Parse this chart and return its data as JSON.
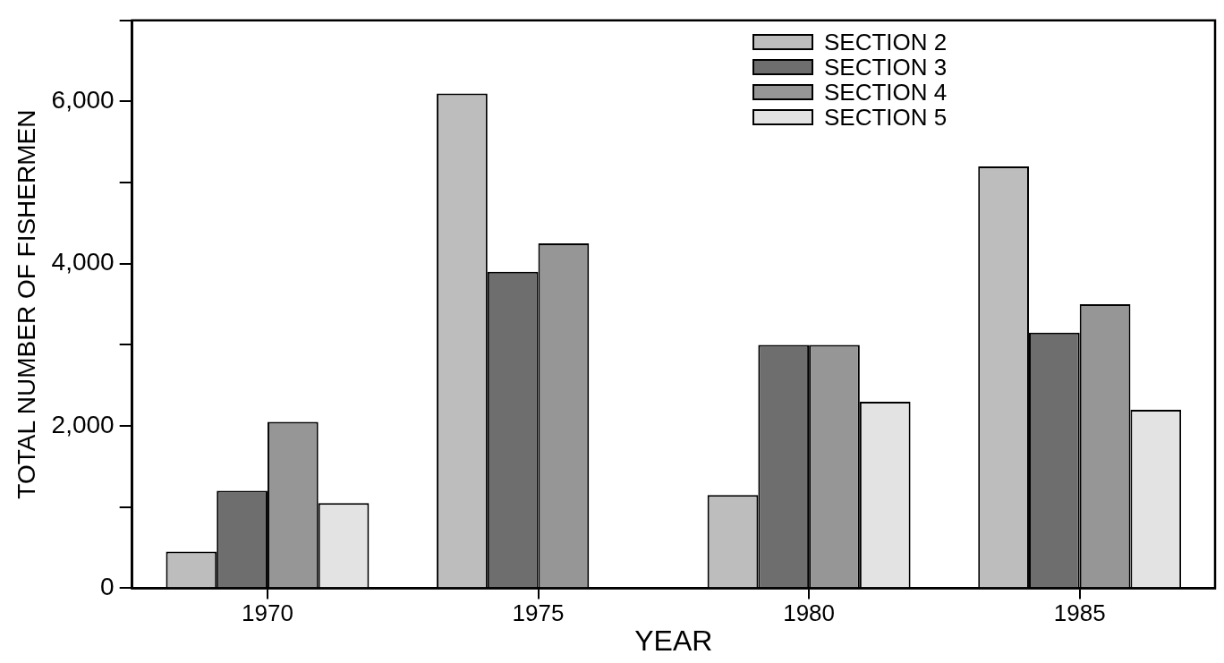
{
  "chart_data": {
    "type": "bar",
    "xlabel": "YEAR",
    "ylabel": "TOTAL NUMBER OF FISHERMEN",
    "categories": [
      "1970",
      "1975",
      "1980",
      "1985"
    ],
    "series": [
      {
        "name": "SECTION 2",
        "color": "#bdbdbd",
        "values": [
          450,
          6100,
          1150,
          5200
        ]
      },
      {
        "name": "SECTION 3",
        "color": "#6e6e6e",
        "values": [
          1200,
          3900,
          3000,
          3150
        ]
      },
      {
        "name": "SECTION 4",
        "color": "#969696",
        "values": [
          2050,
          4250,
          3000,
          3500
        ]
      },
      {
        "name": "SECTION 5",
        "color": "#e3e3e3",
        "values": [
          1050,
          null,
          2300,
          2200
        ]
      }
    ],
    "ylim": [
      0,
      7000
    ],
    "yticks": [
      0,
      {
        "value": 1000,
        "label": null
      },
      {
        "value": 2000,
        "label": "2,000"
      },
      {
        "value": 3000,
        "label": null
      },
      {
        "value": 4000,
        "label": "4,000"
      },
      {
        "value": 5000,
        "label": null
      },
      {
        "value": 6000,
        "label": "6,000"
      },
      {
        "value": 7000,
        "label": null
      }
    ],
    "grid": false,
    "legend": "top right"
  }
}
